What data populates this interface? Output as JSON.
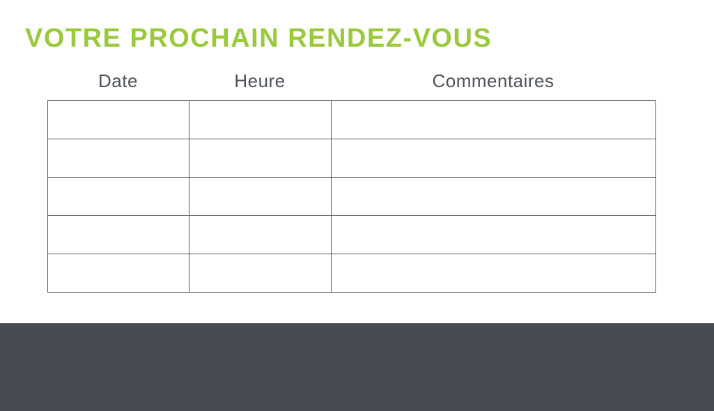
{
  "slide": {
    "title": "VOTRE PROCHAIN RENDEZ-VOUS"
  },
  "table": {
    "headers": [
      "Date",
      "Heure",
      "Commentaires"
    ],
    "rows": [
      [
        "",
        "",
        ""
      ],
      [
        "",
        "",
        ""
      ],
      [
        "",
        "",
        ""
      ],
      [
        "",
        "",
        ""
      ],
      [
        "",
        "",
        ""
      ]
    ]
  },
  "colors": {
    "accent_green": "#9aca3c",
    "header_text": "#4d525a",
    "table_border": "#54585e",
    "footer_band": "#474c54"
  }
}
